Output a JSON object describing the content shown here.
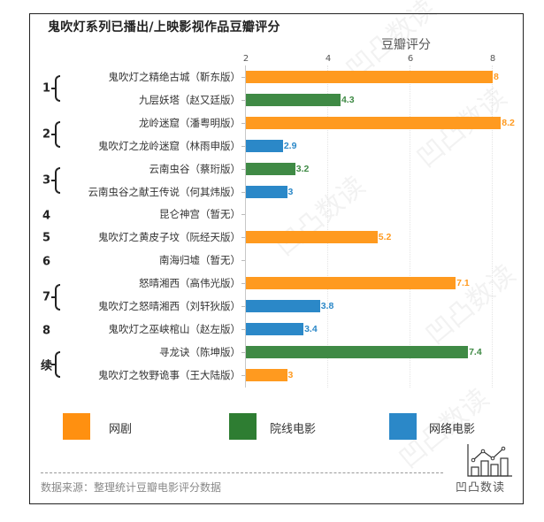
{
  "chart": {
    "title": "鬼吹灯系列已播出/上映影视作品豆瓣评分",
    "axis_title": "豆瓣评分",
    "ticks": [
      "2",
      "4",
      "6",
      "8"
    ]
  },
  "groups": [
    {
      "label": "1"
    },
    {
      "label": "2"
    },
    {
      "label": "3"
    },
    {
      "label": "4"
    },
    {
      "label": "5"
    },
    {
      "label": "6"
    },
    {
      "label": "7"
    },
    {
      "label": "8"
    },
    {
      "label": "续"
    }
  ],
  "rows": [
    {
      "label": "鬼吹灯之精绝古城（靳东版）",
      "value": "8",
      "type": "网剧"
    },
    {
      "label": "九层妖塔（赵又廷版）",
      "value": "4.3",
      "type": "院线电影"
    },
    {
      "label": "龙岭迷窟（潘粤明版）",
      "value": "8.2",
      "type": "网剧"
    },
    {
      "label": "鬼吹灯之龙岭迷窟（林雨申版）",
      "value": "2.9",
      "type": "网络电影"
    },
    {
      "label": "云南虫谷（蔡珩版）",
      "value": "3.2",
      "type": "院线电影"
    },
    {
      "label": "云南虫谷之献王传说（何其炜版）",
      "value": "3",
      "type": "网络电影"
    },
    {
      "label": "昆仑神宫（暂无）",
      "value": "",
      "type": ""
    },
    {
      "label": "鬼吹灯之黄皮子坟（阮经天版）",
      "value": "5.2",
      "type": "网剧"
    },
    {
      "label": "南海归墟（暂无）",
      "value": "",
      "type": ""
    },
    {
      "label": "怒晴湘西（高伟光版）",
      "value": "7.1",
      "type": "网剧"
    },
    {
      "label": "鬼吹灯之怒晴湘西（刘轩狄版）",
      "value": "3.8",
      "type": "网络电影"
    },
    {
      "label": "鬼吹灯之巫峡棺山（赵左版）",
      "value": "3.4",
      "type": "网络电影"
    },
    {
      "label": "寻龙诀（陈坤版）",
      "value": "7.4",
      "type": "院线电影"
    },
    {
      "label": "鬼吹灯之牧野诡事（王大陆版）",
      "value": "3",
      "type": "网剧"
    }
  ],
  "legend": [
    {
      "label": "网剧",
      "color": "#FF9010"
    },
    {
      "label": "院线电影",
      "color": "#2E7D32"
    },
    {
      "label": "网络电影",
      "color": "#2B88C8"
    }
  ],
  "colors": {
    "网剧": "#FF9A1F",
    "院线电影": "#3F8A45",
    "网络电影": "#2B88C8"
  },
  "footer": {
    "source": "数据来源：整理统计豆瓣电影评分数据",
    "logo_text": "凹凸数读"
  },
  "chart_data": {
    "type": "bar",
    "orientation": "horizontal",
    "title": "鬼吹灯系列已播出/上映影视作品豆瓣评分",
    "xlabel": "豆瓣评分",
    "ylabel": "",
    "xlim": [
      2,
      8.5
    ],
    "xticks": [
      2,
      4,
      6,
      8
    ],
    "grid": true,
    "legend_position": "bottom",
    "categories": [
      "鬼吹灯之精绝古城（靳东版）",
      "九层妖塔（赵又廷版）",
      "龙岭迷窟（潘粤明版）",
      "鬼吹灯之龙岭迷窟（林雨申版）",
      "云南虫谷（蔡珩版）",
      "云南虫谷之献王传说（何其炜版）",
      "昆仑神宫（暂无）",
      "鬼吹灯之黄皮子坟（阮经天版）",
      "南海归墟（暂无）",
      "怒晴湘西（高伟光版）",
      "鬼吹灯之怒晴湘西（刘轩狄版）",
      "鬼吹灯之巫峡棺山（赵左版）",
      "寻龙诀（陈坤版）",
      "鬼吹灯之牧野诡事（王大陆版）"
    ],
    "group_labels": [
      "1",
      "1",
      "2",
      "2",
      "3",
      "3",
      "4",
      "5",
      "6",
      "7",
      "7",
      "8",
      "续",
      "续"
    ],
    "series": [
      {
        "name": "网剧",
        "values": [
          8,
          null,
          8.2,
          null,
          null,
          null,
          null,
          5.2,
          null,
          7.1,
          null,
          null,
          null,
          3
        ]
      },
      {
        "name": "院线电影",
        "values": [
          null,
          4.3,
          null,
          null,
          3.2,
          null,
          null,
          null,
          null,
          null,
          null,
          null,
          7.4,
          null
        ]
      },
      {
        "name": "网络电影",
        "values": [
          null,
          null,
          null,
          2.9,
          null,
          3,
          null,
          null,
          null,
          null,
          3.8,
          3.4,
          null,
          null
        ]
      }
    ]
  }
}
